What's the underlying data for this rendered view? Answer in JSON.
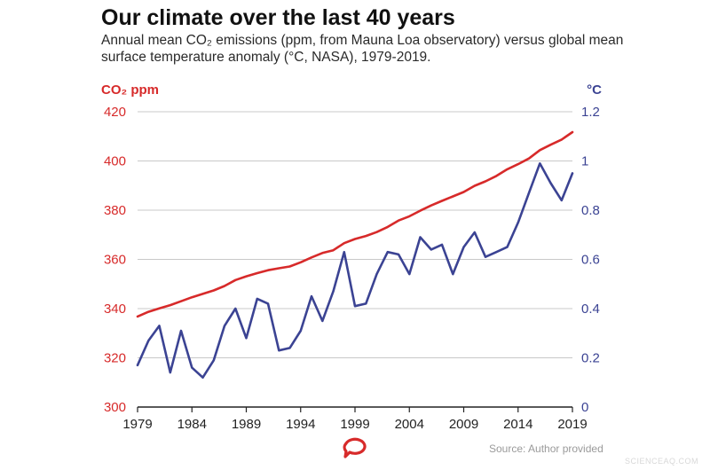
{
  "title": "Our climate over the last 40 years",
  "subtitle": "Annual mean CO₂ emissions (ppm, from Mauna Loa observatory) versus global mean surface temperature anomaly (°C, NASA), 1979-2019.",
  "source": "Source: Author provided",
  "watermark": "SCIENCEAQ.COM",
  "logo": "speech-bubble-logo",
  "chart_data": {
    "type": "line",
    "y_left_label": "CO₂ ppm",
    "y_right_label": "°C",
    "x_ticks": [
      "1979",
      "1984",
      "1989",
      "1994",
      "1999",
      "2004",
      "2009",
      "2014",
      "2019"
    ],
    "y_left_ticks": [
      "300",
      "320",
      "340",
      "360",
      "380",
      "400",
      "420"
    ],
    "y_right_ticks": [
      "0",
      "0.2",
      "0.4",
      "0.6",
      "0.8",
      "1",
      "1.2"
    ],
    "xlim": [
      1979,
      2019
    ],
    "y_left_lim": [
      300,
      420
    ],
    "y_right_lim": [
      0,
      1.2
    ],
    "grid": true,
    "colors": {
      "co2": "#d72a2a",
      "temperature": "#3b4393",
      "grid": "#c8c8c8",
      "axis": "#222222"
    },
    "x": [
      1979,
      1980,
      1981,
      1982,
      1983,
      1984,
      1985,
      1986,
      1987,
      1988,
      1989,
      1990,
      1991,
      1992,
      1993,
      1994,
      1995,
      1996,
      1997,
      1998,
      1999,
      2000,
      2001,
      2002,
      2003,
      2004,
      2005,
      2006,
      2007,
      2008,
      2009,
      2010,
      2011,
      2012,
      2013,
      2014,
      2015,
      2016,
      2017,
      2018,
      2019
    ],
    "series": [
      {
        "axis": "left",
        "color": "#d72a2a",
        "values": [
          336.8,
          338.7,
          340.1,
          341.4,
          343.0,
          344.6,
          346.0,
          347.4,
          349.2,
          351.6,
          353.1,
          354.4,
          355.6,
          356.4,
          357.1,
          358.8,
          360.8,
          362.6,
          363.7,
          366.6,
          368.3,
          369.5,
          371.1,
          373.2,
          375.8,
          377.5,
          379.8,
          381.9,
          383.8,
          385.6,
          387.4,
          389.9,
          391.7,
          393.9,
          396.6,
          398.7,
          401.0,
          404.4,
          406.6,
          408.7,
          411.7
        ]
      },
      {
        "axis": "right",
        "color": "#3b4393",
        "values": [
          0.17,
          0.27,
          0.33,
          0.14,
          0.31,
          0.16,
          0.12,
          0.19,
          0.33,
          0.4,
          0.28,
          0.44,
          0.42,
          0.23,
          0.24,
          0.31,
          0.45,
          0.35,
          0.47,
          0.63,
          0.41,
          0.42,
          0.54,
          0.63,
          0.62,
          0.54,
          0.69,
          0.64,
          0.66,
          0.54,
          0.65,
          0.71,
          0.61,
          0.63,
          0.65,
          0.75,
          0.87,
          0.99,
          0.91,
          0.84,
          0.95
        ]
      }
    ]
  }
}
